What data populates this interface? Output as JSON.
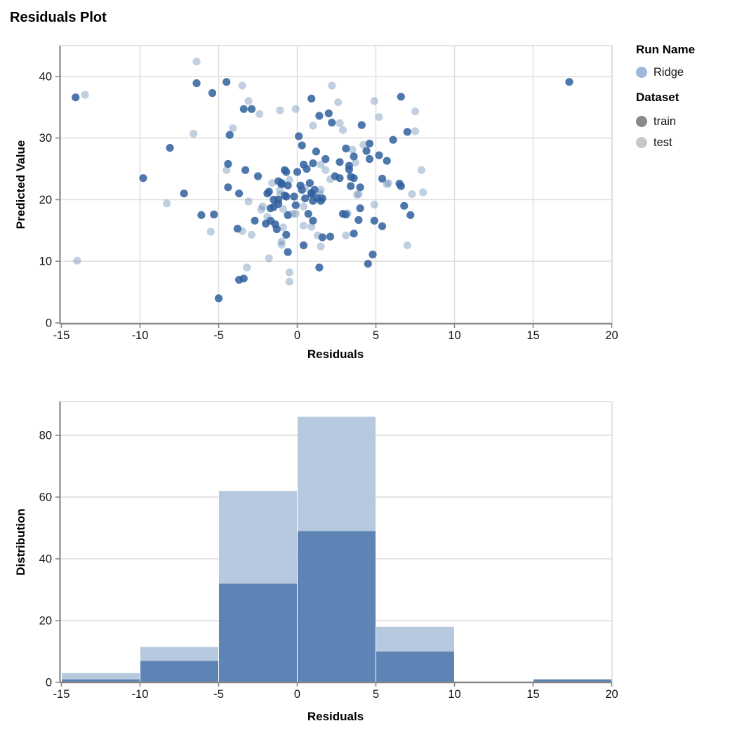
{
  "title": "Residuals Plot",
  "colors": {
    "train_point": "#2f5f9e",
    "test_point": "#4c78a8",
    "bar_train": "#5d84b4",
    "bar_test": "#b6c9df",
    "axis_line": "#878787",
    "grid_line": "#dcdcdc",
    "legend_ridge": "#9fb8da",
    "legend_train": "#8a8a8a",
    "legend_test": "#c8c8c8"
  },
  "legend": {
    "run_name_title": "Run Name",
    "runs": [
      {
        "label": "Ridge",
        "color": "#9fb8da"
      }
    ],
    "dataset_title": "Dataset",
    "datasets": [
      {
        "label": "train",
        "color": "#8a8a8a"
      },
      {
        "label": "test",
        "color": "#c8c8c8"
      }
    ]
  },
  "chart_data": [
    {
      "type": "scatter",
      "title": "Residuals Plot",
      "xlabel": "Residuals",
      "ylabel": "Predicted Value",
      "xlim": [
        -15.1,
        20.3
      ],
      "ylim": [
        0,
        45
      ],
      "xticks": [
        -15,
        -10,
        -5,
        0,
        5,
        10,
        15,
        20
      ],
      "yticks": [
        0,
        10,
        20,
        30,
        40
      ],
      "grid": true,
      "legend_position": "right",
      "series": [
        {
          "name": "train",
          "color": "#2f5f9e",
          "opacity": 0.85,
          "points": [
            [
              -14.1,
              36.6
            ],
            [
              17.3,
              39.1
            ],
            [
              -9.8,
              23.5
            ],
            [
              -8.1,
              28.4
            ],
            [
              -7.2,
              21.0
            ],
            [
              -6.4,
              38.9
            ],
            [
              -5.4,
              37.3
            ],
            [
              -4.5,
              39.1
            ],
            [
              -5.0,
              4.0
            ],
            [
              -6.1,
              17.5
            ],
            [
              -5.3,
              17.6
            ],
            [
              -3.4,
              34.7
            ],
            [
              -2.9,
              34.7
            ],
            [
              0.9,
              36.4
            ],
            [
              1.4,
              33.6
            ],
            [
              2.0,
              34.0
            ],
            [
              2.2,
              32.5
            ],
            [
              -4.3,
              30.5
            ],
            [
              6.6,
              36.7
            ],
            [
              4.1,
              32.1
            ],
            [
              7.0,
              31.0
            ],
            [
              6.1,
              29.7
            ],
            [
              4.6,
              29.1
            ],
            [
              3.1,
              28.3
            ],
            [
              0.1,
              30.3
            ],
            [
              0.3,
              28.8
            ],
            [
              1.2,
              27.8
            ],
            [
              1.8,
              26.6
            ],
            [
              -4.4,
              25.8
            ],
            [
              -4.4,
              22.0
            ],
            [
              -3.3,
              24.8
            ],
            [
              4.4,
              27.9
            ],
            [
              3.6,
              27.0
            ],
            [
              4.6,
              26.6
            ],
            [
              5.2,
              27.2
            ],
            [
              5.7,
              26.3
            ],
            [
              3.3,
              24.9
            ],
            [
              3.4,
              23.7
            ],
            [
              3.6,
              23.5
            ],
            [
              5.4,
              23.4
            ],
            [
              6.5,
              22.6
            ],
            [
              0.4,
              25.7
            ],
            [
              1.0,
              25.9
            ],
            [
              2.7,
              26.1
            ],
            [
              -0.8,
              24.8
            ],
            [
              0.0,
              24.5
            ],
            [
              0.6,
              25.0
            ],
            [
              3.3,
              25.5
            ],
            [
              -2.5,
              23.8
            ],
            [
              -0.7,
              24.5
            ],
            [
              -1.2,
              23.0
            ],
            [
              -1.0,
              22.5
            ],
            [
              2.4,
              23.8
            ],
            [
              2.7,
              23.5
            ],
            [
              -1.0,
              22.7
            ],
            [
              -0.6,
              22.3
            ],
            [
              -1.8,
              21.3
            ],
            [
              -0.8,
              20.7
            ],
            [
              -0.2,
              20.5
            ],
            [
              0.2,
              22.3
            ],
            [
              0.3,
              21.6
            ],
            [
              0.8,
              22.7
            ],
            [
              1.1,
              21.6
            ],
            [
              0.9,
              20.9
            ],
            [
              1.3,
              20.3
            ],
            [
              1.5,
              19.8
            ],
            [
              -1.5,
              20.0
            ],
            [
              -1.2,
              19.3
            ],
            [
              -1.7,
              18.6
            ],
            [
              -1.7,
              16.6
            ],
            [
              -0.6,
              17.5
            ],
            [
              -0.1,
              19.1
            ],
            [
              0.7,
              17.7
            ],
            [
              1.0,
              16.6
            ],
            [
              2.9,
              17.7
            ],
            [
              3.9,
              16.7
            ],
            [
              -1.3,
              15.2
            ],
            [
              -0.7,
              14.3
            ],
            [
              -1.9,
              21.0
            ],
            [
              -1.5,
              18.8
            ],
            [
              -2.0,
              16.1
            ],
            [
              -1.4,
              16.0
            ],
            [
              -1.2,
              20.0
            ],
            [
              -0.7,
              20.5
            ],
            [
              0.5,
              20.2
            ],
            [
              0.9,
              21.1
            ],
            [
              1.0,
              19.8
            ],
            [
              1.6,
              20.2
            ],
            [
              1.6,
              13.9
            ],
            [
              2.1,
              14.0
            ],
            [
              0.4,
              12.6
            ],
            [
              -0.6,
              11.5
            ],
            [
              -3.8,
              15.3
            ],
            [
              -2.7,
              16.6
            ],
            [
              -3.7,
              21.0
            ],
            [
              3.4,
              22.2
            ],
            [
              4.0,
              22.0
            ],
            [
              6.6,
              22.2
            ],
            [
              4.0,
              18.6
            ],
            [
              3.1,
              17.6
            ],
            [
              6.8,
              19.0
            ],
            [
              7.2,
              17.5
            ],
            [
              4.9,
              16.6
            ],
            [
              5.4,
              15.7
            ],
            [
              3.6,
              14.5
            ],
            [
              4.8,
              11.1
            ],
            [
              4.5,
              9.6
            ],
            [
              -3.7,
              7.0
            ],
            [
              -3.4,
              7.2
            ],
            [
              1.4,
              9.0
            ]
          ]
        },
        {
          "name": "test",
          "color": "#4c78a8",
          "opacity": 0.35,
          "points": [
            [
              -13.5,
              37.0
            ],
            [
              -14.0,
              10.1
            ],
            [
              -6.4,
              42.4
            ],
            [
              -8.3,
              19.4
            ],
            [
              -6.6,
              30.7
            ],
            [
              -3.5,
              38.5
            ],
            [
              -3.1,
              36.0
            ],
            [
              -2.4,
              33.9
            ],
            [
              -1.1,
              34.5
            ],
            [
              -0.1,
              34.7
            ],
            [
              2.2,
              38.5
            ],
            [
              2.6,
              35.8
            ],
            [
              1.0,
              32.0
            ],
            [
              2.7,
              32.4
            ],
            [
              -4.1,
              31.6
            ],
            [
              4.9,
              36.0
            ],
            [
              7.5,
              34.3
            ],
            [
              5.2,
              33.4
            ],
            [
              2.9,
              31.3
            ],
            [
              7.5,
              31.1
            ],
            [
              3.5,
              28.1
            ],
            [
              4.2,
              28.9
            ],
            [
              3.7,
              26.0
            ],
            [
              -4.5,
              24.8
            ],
            [
              1.5,
              25.7
            ],
            [
              1.8,
              24.8
            ],
            [
              -0.5,
              23.2
            ],
            [
              7.9,
              24.8
            ],
            [
              5.8,
              22.7
            ],
            [
              2.1,
              23.3
            ],
            [
              -1.6,
              22.7
            ],
            [
              -1.1,
              21.6
            ],
            [
              0.5,
              21.9
            ],
            [
              1.5,
              21.6
            ],
            [
              3.9,
              20.9
            ],
            [
              -2.2,
              18.9
            ],
            [
              -1.9,
              17.2
            ],
            [
              -0.3,
              17.7
            ],
            [
              0.4,
              15.8
            ],
            [
              0.9,
              15.6
            ],
            [
              3.2,
              17.8
            ],
            [
              -0.9,
              15.5
            ],
            [
              -1.0,
              13.2
            ],
            [
              -1.1,
              20.8
            ],
            [
              1.4,
              21.0
            ],
            [
              0.4,
              18.9
            ],
            [
              -0.9,
              18.5
            ],
            [
              -0.1,
              17.7
            ],
            [
              1.3,
              14.2
            ],
            [
              1.5,
              12.4
            ],
            [
              -1.0,
              12.7
            ],
            [
              -1.8,
              10.5
            ],
            [
              -3.2,
              9.0
            ],
            [
              -0.5,
              8.2
            ],
            [
              -0.5,
              6.7
            ],
            [
              3.8,
              20.8
            ],
            [
              5.7,
              22.5
            ],
            [
              7.3,
              20.9
            ],
            [
              8.0,
              21.2
            ],
            [
              4.9,
              19.2
            ],
            [
              3.1,
              14.2
            ],
            [
              7.0,
              12.6
            ],
            [
              -3.5,
              14.9
            ],
            [
              -2.9,
              14.3
            ],
            [
              -2.3,
              18.4
            ],
            [
              -5.5,
              14.8
            ],
            [
              -3.1,
              19.7
            ]
          ]
        }
      ]
    },
    {
      "type": "bar",
      "subtype": "stacked-histogram",
      "xlabel": "Residuals",
      "ylabel": "Distribution",
      "xlim": [
        -15.1,
        20.3
      ],
      "ylim": [
        0,
        91
      ],
      "xticks": [
        -15,
        -10,
        -5,
        0,
        5,
        10,
        15,
        20
      ],
      "yticks": [
        0,
        20,
        40,
        60,
        80
      ],
      "grid": true,
      "bin_edges": [
        -15,
        -10,
        -5,
        0,
        5,
        10,
        15,
        20
      ],
      "series": [
        {
          "name": "train",
          "color": "#5d84b4",
          "values": [
            1,
            7,
            32,
            49,
            10,
            0,
            1
          ]
        },
        {
          "name": "test",
          "color": "#b6c9df",
          "values": [
            2,
            4.5,
            30,
            37,
            8,
            0,
            0
          ]
        }
      ]
    }
  ]
}
